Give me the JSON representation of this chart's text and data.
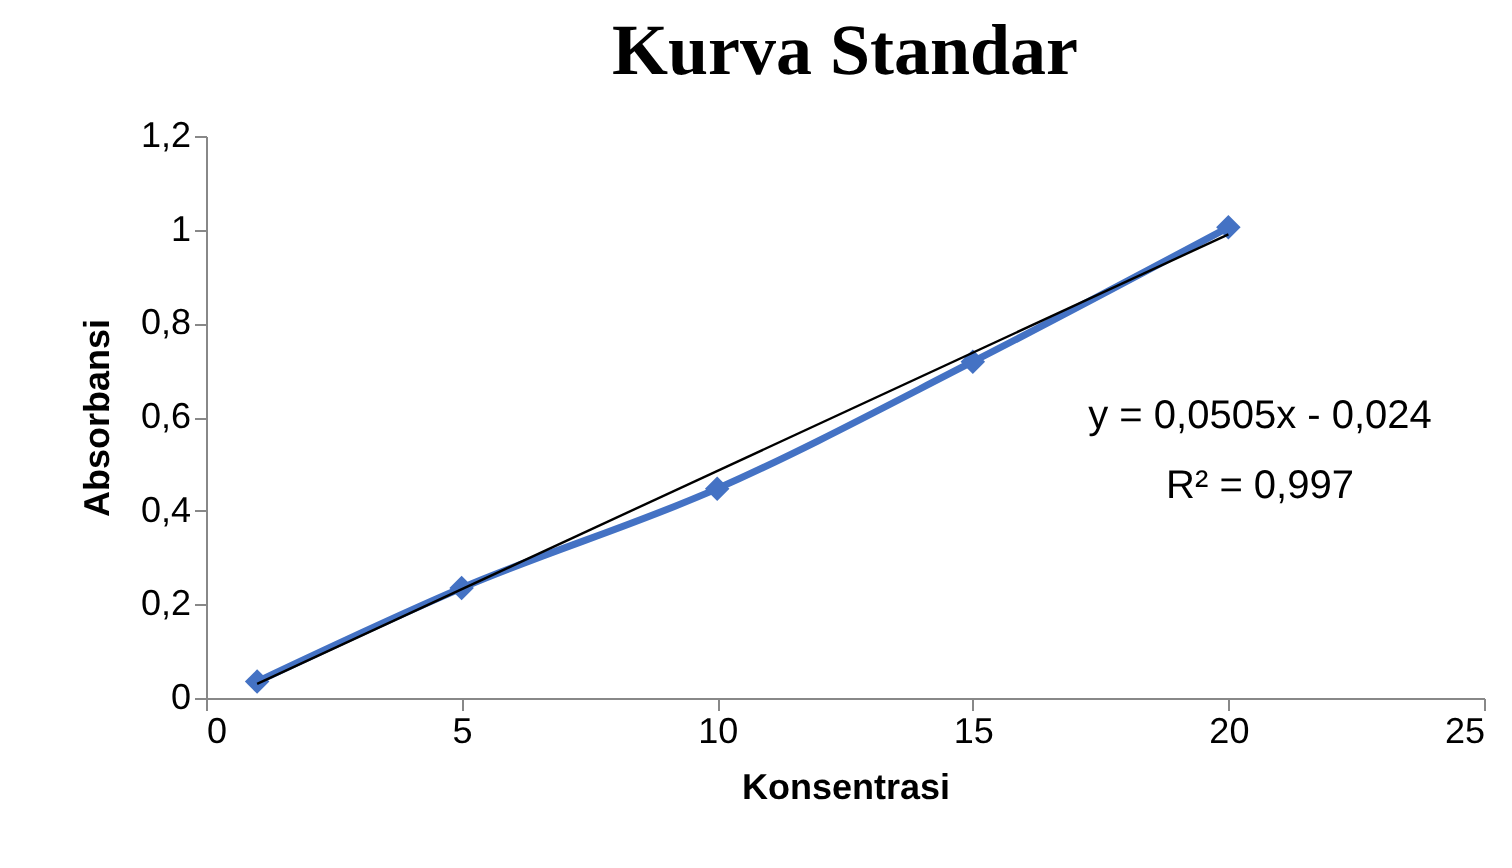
{
  "chart_data": {
    "type": "line",
    "title": "Kurva Standar",
    "xlabel": "Konsentrasi",
    "ylabel": "Absorbansi",
    "x": [
      1,
      5,
      10,
      15,
      20
    ],
    "series": [
      {
        "color": "#4472c4",
        "values": [
          0.035,
          0.235,
          0.447,
          0.718,
          1.005
        ],
        "marker": "diamond"
      },
      {
        "color": "#000000",
        "x": [
          1,
          20
        ],
        "values": [
          0.03,
          0.99
        ],
        "marker": "none"
      }
    ],
    "xlim": [
      0,
      25
    ],
    "xticks": [
      0,
      5,
      10,
      15,
      20,
      25
    ],
    "ylim": [
      0,
      1.2
    ],
    "yticks": [
      0,
      {
        "value": 0.2,
        "label": "0,2"
      },
      {
        "value": 0.4,
        "label": "0,4"
      },
      {
        "value": 0.6,
        "label": "0,6"
      },
      {
        "value": 0.8,
        "label": "0,8"
      },
      1,
      {
        "value": 1.2,
        "label": "1,2"
      }
    ],
    "annotations": [
      "y = 0,0505x - 0,024",
      "R² = 0,997"
    ],
    "grid": false,
    "line_style": "solid"
  }
}
